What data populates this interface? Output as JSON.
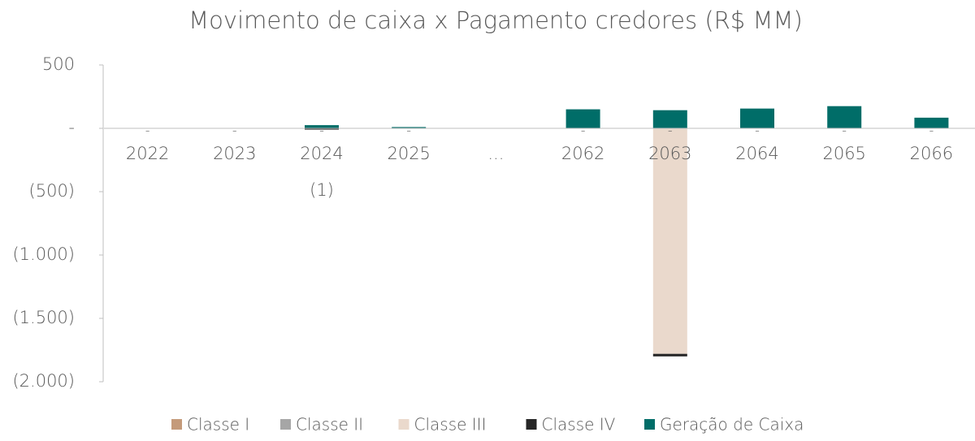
{
  "chart_data": {
    "type": "bar",
    "stacked": true,
    "title": "Movimento de caixa  x Pagamento credores (R$ MM)",
    "categories": [
      "2022",
      "2023",
      "2024 (1)",
      "2025",
      "...",
      "2062",
      "2063",
      "2064",
      "2065",
      "2066"
    ],
    "series": [
      {
        "name": "Classe I",
        "color": "#c49a7a",
        "values": [
          0,
          0,
          0,
          0,
          null,
          0,
          0,
          0,
          0,
          0
        ],
        "value_labels": [
          "-",
          "-",
          "-",
          "-",
          null,
          "-",
          "-",
          "-",
          "-",
          "-"
        ]
      },
      {
        "name": "Classe II",
        "color": "#a6a6a6",
        "values": [
          0,
          0,
          0,
          0,
          null,
          0,
          0,
          0,
          0,
          0
        ]
      },
      {
        "name": "Classe III",
        "color": "#ead9cc",
        "values": [
          0,
          0,
          0,
          0,
          null,
          0,
          -1780,
          0,
          0,
          0
        ]
      },
      {
        "name": "Classe IV",
        "color": "#262626",
        "values": [
          0,
          0,
          -10,
          0,
          null,
          0,
          -20,
          0,
          0,
          0
        ]
      },
      {
        "name": "Geração de Caixa",
        "color": "#006d68",
        "values": [
          0,
          0,
          25,
          10,
          null,
          150,
          143,
          156,
          175,
          84
        ]
      }
    ],
    "ylim": [
      -2000,
      500
    ],
    "yticks": [
      {
        "value": -2000,
        "label": "(2.000)"
      },
      {
        "value": -1500,
        "label": "(1.500)"
      },
      {
        "value": -1000,
        "label": "(1.000)"
      },
      {
        "value": -500,
        "label": "(500)"
      },
      {
        "value": 0,
        "label": "-"
      },
      500
    ],
    "grid": false,
    "legend": "bottom"
  }
}
